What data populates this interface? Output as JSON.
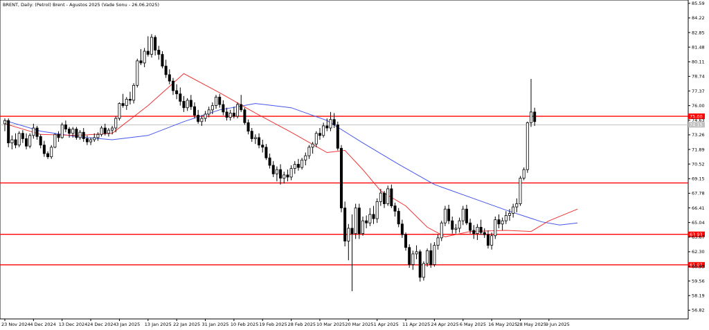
{
  "chart_data": {
    "type": "candlestick",
    "title": "BRENT, Daily:  (Petrol) Brent - Agustos 2025 (Vade Sonu - 26.06.2025)",
    "y_ticks": [
      "85.59",
      "84.22",
      "82.85",
      "81.48",
      "80.11",
      "78.74",
      "77.37",
      "76.00",
      "74.63",
      "73.26",
      "71.89",
      "70.52",
      "69.15",
      "67.78",
      "66.41",
      "65.04",
      "63.67",
      "62.30",
      "60.93",
      "59.56",
      "58.19",
      "56.82"
    ],
    "x_ticks": [
      "23 Nov 2024",
      "4 Dec 2024",
      "13 Dec 2024",
      "24 Dec 2024",
      "3 Jan 2025",
      "13 Jan 2025",
      "22 Jan 2025",
      "31 Jan 2025",
      "10 Feb 2025",
      "19 Feb 2025",
      "28 Feb 2025",
      "10 Mar 2025",
      "20 Mar 2025",
      "1 Apr 2025",
      "11 Apr 2025",
      "24 Apr 2025",
      "6 May 2025",
      "16 May 2025",
      "28 May 2025",
      "9 Jun 2025"
    ],
    "ylim": [
      56.0,
      85.9
    ],
    "horizontal_levels": [
      {
        "value": 75.0,
        "label": "75.00"
      },
      {
        "value": 68.75,
        "label": ""
      },
      {
        "value": 63.93,
        "label": "63.93"
      },
      {
        "value": 61.07,
        "label": "61.07"
      }
    ],
    "current_price": {
      "value": 74.2,
      "label": "74.15"
    },
    "ohlc": [
      [
        74.3,
        74.8,
        73.6,
        74.6
      ],
      [
        74.6,
        74.8,
        72.1,
        72.5
      ],
      [
        72.5,
        73.2,
        71.9,
        72.8
      ],
      [
        72.8,
        73.4,
        72.0,
        72.3
      ],
      [
        72.3,
        73.6,
        72.1,
        73.4
      ],
      [
        73.4,
        73.7,
        72.5,
        72.9
      ],
      [
        72.9,
        73.4,
        71.9,
        72.2
      ],
      [
        72.2,
        73.4,
        72.0,
        73.2
      ],
      [
        73.2,
        74.3,
        72.9,
        73.9
      ],
      [
        73.9,
        74.1,
        72.8,
        73.1
      ],
      [
        73.1,
        73.3,
        72.0,
        72.3
      ],
      [
        72.3,
        72.7,
        71.2,
        71.5
      ],
      [
        71.5,
        71.7,
        71.0,
        71.2
      ],
      [
        71.2,
        72.3,
        71.0,
        72.1
      ],
      [
        72.1,
        73.4,
        72.0,
        73.3
      ],
      [
        73.3,
        73.6,
        72.6,
        73.0
      ],
      [
        73.0,
        74.4,
        72.9,
        74.2
      ],
      [
        74.2,
        74.6,
        73.5,
        73.8
      ],
      [
        73.8,
        74.0,
        73.0,
        73.4
      ],
      [
        73.4,
        74.0,
        73.0,
        73.8
      ],
      [
        73.8,
        74.0,
        72.8,
        73.0
      ],
      [
        73.0,
        73.7,
        72.8,
        73.5
      ],
      [
        73.5,
        73.9,
        72.6,
        72.9
      ],
      [
        72.9,
        73.2,
        72.3,
        72.6
      ],
      [
        72.6,
        73.0,
        72.3,
        72.8
      ],
      [
        72.8,
        73.4,
        72.6,
        73.0
      ],
      [
        73.0,
        73.5,
        72.7,
        73.3
      ],
      [
        73.3,
        74.1,
        73.1,
        73.9
      ],
      [
        73.9,
        74.3,
        73.2,
        73.4
      ],
      [
        73.4,
        73.9,
        73.1,
        73.7
      ],
      [
        73.7,
        74.1,
        73.3,
        73.9
      ],
      [
        73.9,
        75.0,
        73.5,
        74.8
      ],
      [
        74.8,
        76.3,
        74.6,
        76.2
      ],
      [
        76.2,
        77.1,
        75.8,
        76.0
      ],
      [
        76.0,
        76.8,
        75.6,
        76.6
      ],
      [
        76.6,
        77.3,
        76.1,
        76.5
      ],
      [
        76.5,
        78.1,
        76.2,
        77.9
      ],
      [
        77.9,
        80.4,
        77.7,
        80.2
      ],
      [
        80.2,
        81.3,
        79.8,
        80.0
      ],
      [
        80.0,
        81.4,
        79.6,
        81.1
      ],
      [
        81.1,
        82.5,
        80.6,
        80.8
      ],
      [
        80.8,
        82.7,
        80.5,
        82.4
      ],
      [
        82.4,
        82.6,
        80.7,
        81.2
      ],
      [
        81.2,
        81.6,
        80.3,
        80.8
      ],
      [
        80.8,
        81.1,
        79.5,
        79.7
      ],
      [
        79.7,
        80.3,
        78.6,
        78.9
      ],
      [
        78.9,
        79.4,
        78.0,
        78.3
      ],
      [
        78.3,
        78.6,
        77.0,
        77.4
      ],
      [
        77.4,
        78.0,
        76.6,
        77.1
      ],
      [
        77.1,
        77.7,
        76.0,
        76.4
      ],
      [
        76.4,
        76.9,
        75.4,
        75.8
      ],
      [
        75.8,
        76.7,
        75.5,
        76.5
      ],
      [
        76.5,
        77.0,
        75.6,
        75.9
      ],
      [
        75.9,
        76.3,
        74.8,
        75.1
      ],
      [
        75.1,
        75.6,
        74.3,
        74.5
      ],
      [
        74.5,
        75.1,
        74.1,
        74.8
      ],
      [
        74.8,
        75.5,
        74.5,
        75.2
      ],
      [
        75.2,
        75.9,
        74.9,
        75.6
      ],
      [
        75.6,
        76.3,
        75.2,
        76.0
      ],
      [
        76.0,
        77.0,
        75.7,
        76.8
      ],
      [
        76.8,
        77.1,
        75.8,
        76.1
      ],
      [
        76.1,
        76.5,
        75.1,
        75.4
      ],
      [
        75.4,
        75.8,
        74.6,
        74.9
      ],
      [
        74.9,
        75.6,
        74.6,
        75.3
      ],
      [
        75.3,
        75.9,
        74.8,
        75.0
      ],
      [
        75.0,
        76.3,
        74.8,
        76.1
      ],
      [
        76.1,
        77.0,
        75.4,
        75.6
      ],
      [
        75.6,
        75.8,
        74.2,
        74.4
      ],
      [
        74.4,
        74.7,
        73.3,
        73.6
      ],
      [
        73.6,
        73.9,
        72.6,
        72.9
      ],
      [
        72.9,
        73.3,
        72.4,
        73.0
      ],
      [
        73.0,
        73.4,
        72.0,
        72.3
      ],
      [
        72.3,
        72.8,
        71.6,
        72.1
      ],
      [
        72.1,
        72.4,
        70.9,
        71.1
      ],
      [
        71.1,
        71.5,
        70.1,
        70.4
      ],
      [
        70.4,
        70.8,
        69.3,
        69.6
      ],
      [
        69.6,
        70.3,
        68.9,
        70.0
      ],
      [
        70.0,
        70.5,
        68.6,
        69.2
      ],
      [
        69.2,
        69.8,
        68.7,
        69.5
      ],
      [
        69.5,
        70.0,
        68.9,
        69.3
      ],
      [
        69.3,
        70.4,
        69.0,
        70.1
      ],
      [
        70.1,
        70.8,
        69.6,
        70.5
      ],
      [
        70.5,
        71.0,
        69.9,
        70.2
      ],
      [
        70.2,
        71.1,
        70.0,
        70.9
      ],
      [
        70.9,
        71.6,
        70.4,
        71.3
      ],
      [
        71.3,
        72.3,
        71.0,
        72.1
      ],
      [
        72.1,
        72.6,
        71.5,
        72.4
      ],
      [
        72.4,
        73.6,
        72.1,
        73.4
      ],
      [
        73.4,
        73.9,
        72.8,
        73.2
      ],
      [
        73.2,
        74.4,
        73.0,
        74.1
      ],
      [
        74.1,
        74.8,
        73.6,
        73.9
      ],
      [
        73.9,
        75.4,
        73.6,
        74.7
      ],
      [
        74.7,
        75.3,
        73.9,
        74.2
      ],
      [
        74.2,
        74.5,
        71.8,
        72.0
      ],
      [
        72.0,
        72.3,
        66.0,
        66.4
      ],
      [
        66.4,
        67.0,
        62.8,
        63.3
      ],
      [
        63.3,
        64.9,
        61.5,
        64.5
      ],
      [
        64.5,
        65.8,
        58.6,
        64.0
      ],
      [
        64.0,
        66.8,
        63.5,
        66.4
      ],
      [
        66.4,
        66.8,
        63.5,
        64.0
      ],
      [
        64.0,
        65.6,
        63.8,
        65.2
      ],
      [
        65.2,
        65.7,
        64.5,
        65.0
      ],
      [
        65.0,
        66.4,
        64.7,
        65.8
      ],
      [
        65.8,
        66.6,
        64.9,
        65.4
      ],
      [
        65.4,
        67.3,
        65.0,
        67.0
      ],
      [
        67.0,
        68.2,
        66.6,
        67.8
      ],
      [
        67.8,
        68.0,
        66.4,
        66.8
      ],
      [
        66.8,
        68.5,
        66.6,
        68.2
      ],
      [
        68.2,
        68.6,
        66.4,
        66.6
      ],
      [
        66.6,
        66.9,
        65.6,
        66.1
      ],
      [
        66.1,
        66.4,
        64.6,
        64.9
      ],
      [
        64.9,
        65.3,
        63.6,
        63.9
      ],
      [
        63.9,
        64.1,
        62.4,
        62.7
      ],
      [
        62.7,
        63.0,
        60.8,
        61.1
      ],
      [
        61.1,
        62.4,
        60.6,
        62.1
      ],
      [
        62.1,
        62.9,
        61.6,
        62.3
      ],
      [
        62.3,
        62.5,
        59.5,
        59.9
      ],
      [
        59.9,
        61.4,
        59.6,
        61.2
      ],
      [
        61.2,
        62.6,
        60.9,
        62.4
      ],
      [
        62.4,
        63.1,
        60.8,
        61.1
      ],
      [
        61.1,
        63.2,
        60.9,
        62.9
      ],
      [
        62.9,
        63.9,
        62.5,
        63.6
      ],
      [
        63.6,
        65.2,
        63.3,
        65.0
      ],
      [
        65.0,
        66.6,
        64.7,
        66.3
      ],
      [
        66.3,
        66.7,
        64.9,
        65.2
      ],
      [
        65.2,
        65.6,
        64.0,
        64.4
      ],
      [
        64.4,
        64.9,
        64.0,
        64.5
      ],
      [
        64.5,
        65.5,
        64.1,
        65.2
      ],
      [
        65.2,
        66.6,
        64.8,
        66.3
      ],
      [
        66.3,
        66.7,
        64.8,
        65.0
      ],
      [
        65.0,
        65.4,
        64.0,
        64.3
      ],
      [
        64.3,
        64.8,
        63.5,
        64.0
      ],
      [
        64.0,
        64.9,
        63.4,
        64.6
      ],
      [
        64.6,
        65.3,
        63.9,
        64.1
      ],
      [
        64.1,
        64.5,
        63.6,
        63.9
      ],
      [
        63.9,
        64.3,
        62.6,
        62.9
      ],
      [
        62.9,
        64.1,
        62.5,
        63.8
      ],
      [
        63.8,
        65.6,
        63.5,
        65.3
      ],
      [
        65.3,
        65.8,
        64.5,
        64.9
      ],
      [
        64.9,
        65.5,
        64.3,
        65.2
      ],
      [
        65.2,
        66.1,
        64.9,
        65.7
      ],
      [
        65.7,
        66.3,
        65.2,
        65.9
      ],
      [
        65.9,
        66.8,
        65.5,
        66.5
      ],
      [
        66.5,
        67.3,
        66.0,
        66.8
      ],
      [
        66.8,
        69.4,
        66.6,
        69.2
      ],
      [
        69.2,
        70.2,
        69.0,
        70.0
      ],
      [
        70.0,
        74.5,
        69.7,
        74.4
      ],
      [
        74.4,
        78.5,
        74.0,
        75.4
      ],
      [
        75.4,
        75.8,
        74.1,
        74.5
      ]
    ],
    "ma_fast": [
      [
        0,
        74.3
      ],
      [
        10,
        73.3
      ],
      [
        20,
        73.2
      ],
      [
        30,
        73.4
      ],
      [
        40,
        76.0
      ],
      [
        50,
        79.0
      ],
      [
        60,
        77.2
      ],
      [
        70,
        75.3
      ],
      [
        80,
        73.5
      ],
      [
        90,
        71.6
      ],
      [
        95,
        71.8
      ],
      [
        100,
        70.0
      ],
      [
        105,
        68.0
      ],
      [
        112,
        66.6
      ],
      [
        118,
        64.6
      ],
      [
        123,
        63.7
      ],
      [
        130,
        64.2
      ],
      [
        140,
        64.3
      ],
      [
        147,
        64.2
      ],
      [
        152,
        65.2
      ],
      [
        160,
        66.3
      ]
    ],
    "ma_slow": [
      [
        0,
        74.6
      ],
      [
        10,
        73.6
      ],
      [
        20,
        73.1
      ],
      [
        30,
        72.8
      ],
      [
        40,
        73.2
      ],
      [
        50,
        74.5
      ],
      [
        60,
        75.6
      ],
      [
        70,
        76.2
      ],
      [
        80,
        75.8
      ],
      [
        90,
        74.6
      ],
      [
        100,
        72.5
      ],
      [
        110,
        70.5
      ],
      [
        120,
        68.6
      ],
      [
        130,
        67.4
      ],
      [
        140,
        66.2
      ],
      [
        150,
        65.1
      ],
      [
        155,
        64.8
      ],
      [
        160,
        65.0
      ]
    ]
  }
}
